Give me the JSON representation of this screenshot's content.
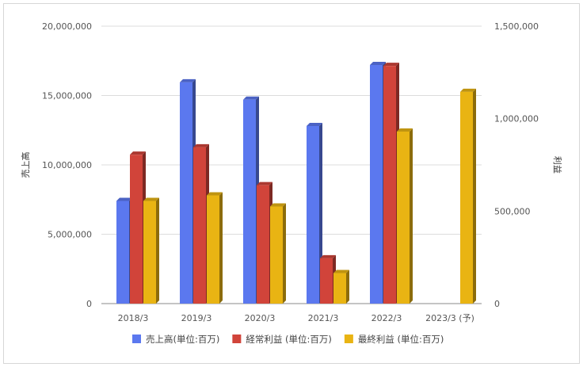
{
  "chart_data": {
    "type": "bar",
    "categories": [
      "2018/3",
      "2019/3",
      "2020/3",
      "2021/3",
      "2022/3",
      "2023/3 (予)"
    ],
    "series": [
      {
        "name": "売上高(単位:百万)",
        "axis": "left",
        "color": "#5b78ef",
        "values": [
          7400000,
          15950000,
          14700000,
          12800000,
          17200000,
          null
        ]
      },
      {
        "name": "経常利益 (単位:百万)",
        "axis": "right",
        "color": "#d1443a",
        "values": [
          805000,
          845000,
          640000,
          245000,
          1285000,
          null
        ]
      },
      {
        "name": "最終利益 (単位:百万)",
        "axis": "right",
        "color": "#e9b413",
        "values": [
          555000,
          585000,
          525000,
          165000,
          930000,
          1145000
        ]
      }
    ],
    "left_axis": {
      "title": "売上高",
      "min": 0,
      "max": 20000000,
      "ticks": [
        "0",
        "5,000,000",
        "10,000,000",
        "15,000,000",
        "20,000,000"
      ]
    },
    "right_axis": {
      "title": "利益",
      "min": 0,
      "max": 1500000,
      "ticks": [
        "0",
        "500,000",
        "1,000,000",
        "1,500,000"
      ]
    },
    "grid": true,
    "legend_position": "bottom",
    "style": "3d-bar"
  }
}
